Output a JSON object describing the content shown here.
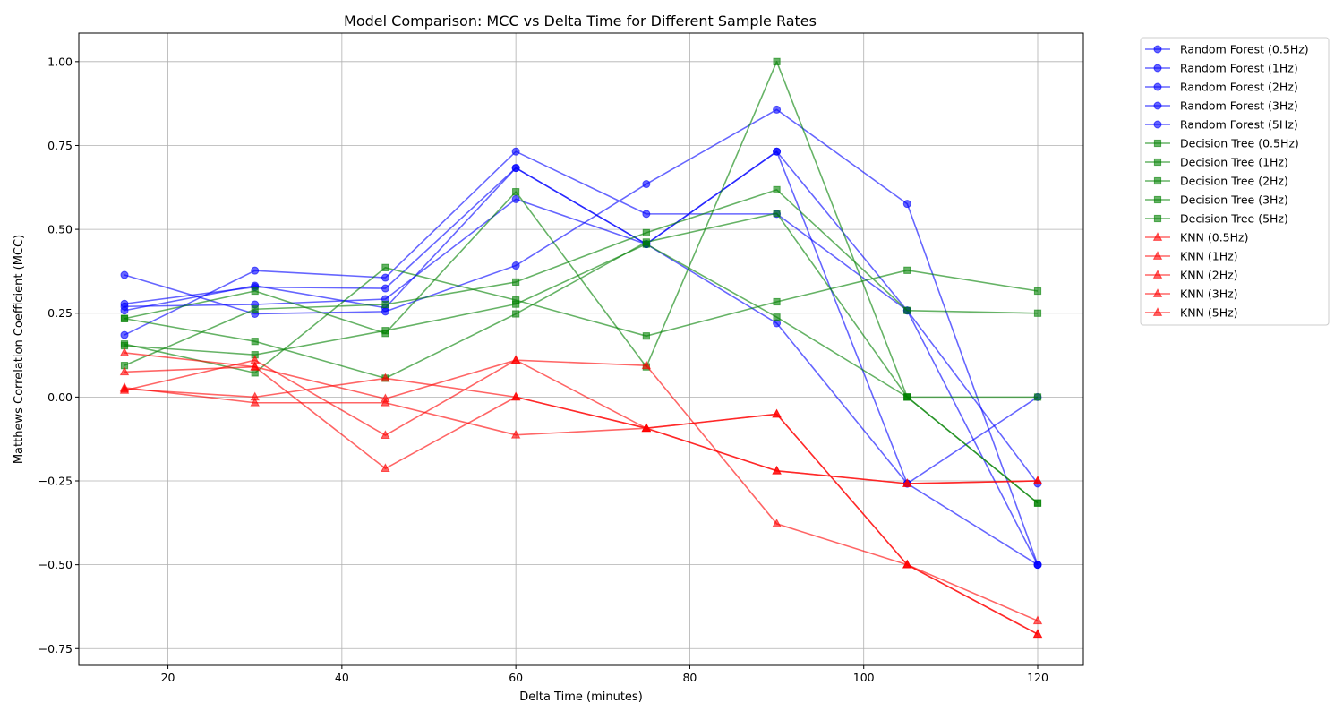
{
  "chart_data": {
    "type": "line",
    "title": "Model Comparison: MCC vs Delta Time for Different Sample Rates",
    "xlabel": "Delta Time (minutes)",
    "ylabel": "Matthews Correlation Coefficient (MCC)",
    "xlim": [
      9.75,
      125.25
    ],
    "ylim": [
      -0.8,
      1.085
    ],
    "xticks": [
      20,
      40,
      60,
      80,
      100,
      120
    ],
    "xtick_labels": [
      "20",
      "40",
      "60",
      "80",
      "100",
      "120"
    ],
    "yticks": [
      -0.75,
      -0.5,
      -0.25,
      0.0,
      0.25,
      0.5,
      0.75,
      1.0
    ],
    "ytick_labels": [
      "−0.75",
      "−0.50",
      "−0.25",
      "0.00",
      "0.25",
      "0.50",
      "0.75",
      "1.00"
    ],
    "grid": true,
    "legend_position": "outside-right-top",
    "x": [
      15,
      30,
      45,
      60,
      75,
      90,
      105,
      120
    ],
    "series": [
      {
        "name": "Random Forest (0.5Hz)",
        "model": "rf",
        "color": "#0000ff",
        "marker": "circle",
        "values": [
          0.364,
          0.248,
          0.255,
          0.392,
          0.635,
          0.857,
          0.576,
          -0.5
        ]
      },
      {
        "name": "Random Forest (1Hz)",
        "model": "rf",
        "color": "#0000ff",
        "marker": "circle",
        "values": [
          0.185,
          0.377,
          0.356,
          0.732,
          0.546,
          0.546,
          0.258,
          -0.5
        ]
      },
      {
        "name": "Random Forest (2Hz)",
        "model": "rf",
        "color": "#0000ff",
        "marker": "circle",
        "values": [
          0.278,
          0.328,
          0.324,
          0.683,
          0.456,
          0.732,
          0.258,
          -0.258
        ]
      },
      {
        "name": "Random Forest (3Hz)",
        "model": "rf",
        "color": "#0000ff",
        "marker": "circle",
        "values": [
          0.258,
          0.332,
          0.266,
          0.683,
          0.456,
          0.732,
          -0.258,
          -0.5
        ]
      },
      {
        "name": "Random Forest (5Hz)",
        "model": "rf",
        "color": "#0000ff",
        "marker": "circle",
        "values": [
          0.27,
          0.276,
          0.292,
          0.59,
          0.456,
          0.22,
          -0.258,
          0.0
        ]
      },
      {
        "name": "Decision Tree (0.5Hz)",
        "model": "dt",
        "color": "#008000",
        "marker": "square",
        "values": [
          0.234,
          0.316,
          0.19,
          0.612,
          0.09,
          1.0,
          0.0,
          -0.316
        ]
      },
      {
        "name": "Decision Tree (1Hz)",
        "model": "dt",
        "color": "#008000",
        "marker": "square",
        "values": [
          0.158,
          0.072,
          0.386,
          0.289,
          0.182,
          0.284,
          0.378,
          0.316
        ]
      },
      {
        "name": "Decision Tree (2Hz)",
        "model": "dt",
        "color": "#008000",
        "marker": "square",
        "values": [
          0.094,
          0.262,
          0.276,
          0.343,
          0.49,
          0.618,
          0.258,
          0.25
        ]
      },
      {
        "name": "Decision Tree (3Hz)",
        "model": "dt",
        "color": "#008000",
        "marker": "square",
        "values": [
          0.234,
          0.166,
          0.056,
          0.248,
          0.462,
          0.548,
          0.0,
          -0.316
        ]
      },
      {
        "name": "Decision Tree (5Hz)",
        "model": "dt",
        "color": "#008000",
        "marker": "square",
        "values": [
          0.153,
          0.126,
          0.198,
          0.277,
          0.456,
          0.238,
          0.0,
          0.0
        ]
      },
      {
        "name": "KNN (0.5Hz)",
        "model": "knn",
        "color": "#ff0000",
        "marker": "triangle",
        "values": [
          0.132,
          0.09,
          -0.005,
          0.11,
          0.094,
          -0.378,
          -0.5,
          -0.667
        ]
      },
      {
        "name": "KNN (1Hz)",
        "model": "knn",
        "color": "#ff0000",
        "marker": "triangle",
        "values": [
          0.075,
          0.09,
          -0.213,
          0.0,
          -0.093,
          -0.051,
          -0.5,
          -0.707
        ]
      },
      {
        "name": "KNN (2Hz)",
        "model": "knn",
        "color": "#ff0000",
        "marker": "triangle",
        "values": [
          0.02,
          0.11,
          -0.114,
          0.11,
          -0.093,
          -0.22,
          -0.258,
          -0.25
        ]
      },
      {
        "name": "KNN (3Hz)",
        "model": "knn",
        "color": "#ff0000",
        "marker": "triangle",
        "values": [
          0.028,
          -0.017,
          -0.017,
          -0.113,
          -0.093,
          -0.22,
          -0.258,
          -0.25
        ]
      },
      {
        "name": "KNN (5Hz)",
        "model": "knn",
        "color": "#ff0000",
        "marker": "triangle",
        "values": [
          0.024,
          0.0,
          0.056,
          0.0,
          -0.093,
          -0.051,
          -0.5,
          -0.707
        ]
      }
    ]
  }
}
